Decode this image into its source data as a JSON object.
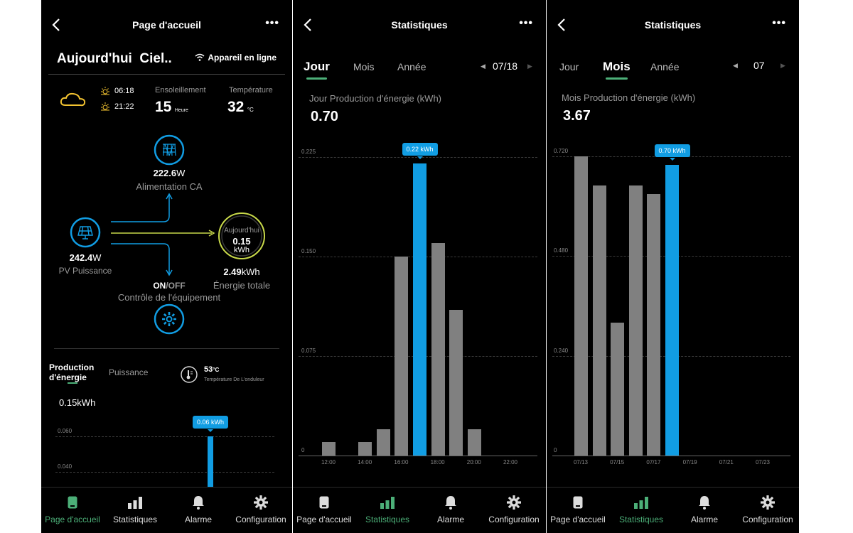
{
  "home": {
    "title": "Page d'accueil",
    "today_label": "Aujourd'hui",
    "weather_text": "Ciel..",
    "device_status": "Appareil en ligne",
    "sunrise": "06:18",
    "sunset": "21:22",
    "sunshine_label": "Ensoleillement",
    "sunshine_value": "15",
    "sunshine_unit": "Heure",
    "temperature_label": "Température",
    "temperature_value": "32",
    "temperature_unit": "°C",
    "ac_value": "222.6",
    "ac_unit": "W",
    "ac_label": "Alimentation CA",
    "pv_value": "242.4",
    "pv_unit": "W",
    "pv_label": "PV Puissance",
    "ring_label": "Aujourd'hui",
    "ring_value": "0.15",
    "ring_unit": "kWh",
    "total_value": "2.49",
    "total_unit": "kWh",
    "total_label": "Énergie totale",
    "onoff_on": "ON",
    "onoff_sep": "/",
    "onoff_off": "OFF",
    "control_label": "Contrôle de l'équipement",
    "tab_production": "Production d'énergie",
    "tab_power": "Puissance",
    "inverter_temp_value": "53",
    "inverter_temp_unit": "°C",
    "inverter_temp_label": "Température De L'onduleur",
    "energy_value": "0.15kWh",
    "mini_tooltip": "0.06 kWh",
    "mini_ticks": [
      "0.060",
      "0.040"
    ]
  },
  "stats_day": {
    "title": "Statistiques",
    "tabs": [
      "Jour",
      "Mois",
      "Année"
    ],
    "date": "07/18",
    "subtitle": "Jour Production d'énergie (kWh)",
    "total": "0.70",
    "tooltip": "0.22 kWh",
    "y_ticks": [
      "0.225",
      "0.150",
      "0.075",
      "0"
    ],
    "x_ticks": [
      "12:00",
      "14:00",
      "16:00",
      "18:00",
      "20:00",
      "22:00"
    ]
  },
  "stats_month": {
    "title": "Statistiques",
    "tabs": [
      "Jour",
      "Mois",
      "Année"
    ],
    "date": "07",
    "subtitle": "Mois Production d'énergie (kWh)",
    "total": "3.67",
    "tooltip": "0.70 kWh",
    "y_ticks": [
      "0.720",
      "0.480",
      "0.240",
      "0"
    ],
    "x_ticks": [
      "07/13",
      "07/15",
      "07/17",
      "07/19",
      "07/21",
      "07/23"
    ]
  },
  "nav": [
    "Page d'accueil",
    "Statistiques",
    "Alarme",
    "Configuration"
  ],
  "colors": {
    "accent_green": "#4caf78",
    "accent_blue": "#119de3",
    "bar_gray": "#808080",
    "weather_yellow": "#f2c230"
  },
  "chart_data": [
    {
      "type": "bar",
      "title": "Jour Production d'énergie (kWh)",
      "ylim": [
        0,
        0.225
      ],
      "categories": [
        "12:00",
        "13:00",
        "14:00",
        "15:00",
        "16:00",
        "17:00",
        "18:00",
        "19:00",
        "20:00"
      ],
      "values": [
        0.01,
        0,
        0.01,
        0.02,
        0.15,
        0.22,
        0.16,
        0.11,
        0.02
      ],
      "highlight_index": 5
    },
    {
      "type": "bar",
      "title": "Mois Production d'énergie (kWh)",
      "ylim": [
        0,
        0.72
      ],
      "categories": [
        "07/13",
        "07/14",
        "07/15",
        "07/16",
        "07/17",
        "07/18"
      ],
      "values": [
        0.72,
        0.65,
        0.32,
        0.65,
        0.63,
        0.7
      ],
      "highlight_index": 5
    },
    {
      "type": "bar",
      "title": "",
      "ylim": [
        0.04,
        0.06
      ],
      "values": [
        0.06
      ],
      "highlight_index": 0
    }
  ]
}
